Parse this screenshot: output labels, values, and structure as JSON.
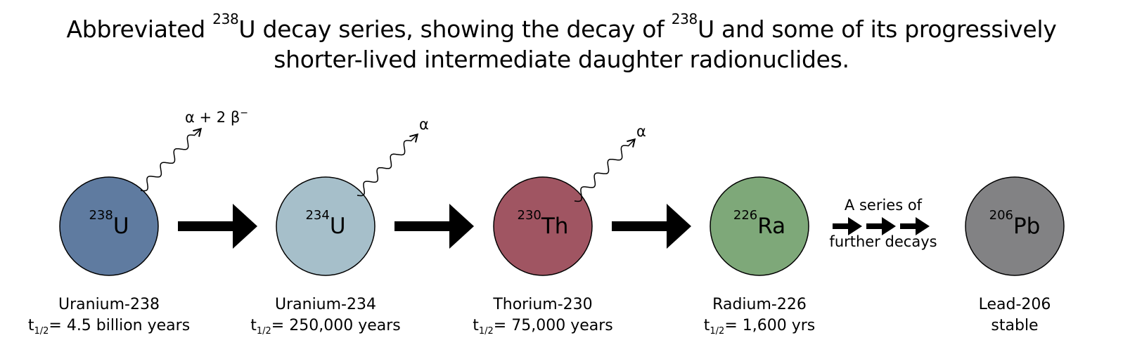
{
  "title": {
    "line1_pre": "Abbreviated ",
    "sup1": "238",
    "line1_mid": "U decay series, showing the decay of ",
    "sup2": "238",
    "line1_post": "U and some of its progressively",
    "line2": "shorter-lived intermediate daughter radionuclides."
  },
  "nuclides": [
    {
      "mass": "238",
      "symbol": "U",
      "name": "Uranium-238",
      "half_life_prefix": "t",
      "half_life_sub": "1/2",
      "half_life_value": "= 4.5 billion years",
      "color": "#5f7ba0"
    },
    {
      "mass": "234",
      "symbol": "U",
      "name": "Uranium-234",
      "half_life_prefix": "t",
      "half_life_sub": "1/2",
      "half_life_value": "= 250,000 years",
      "color": "#a6bfca"
    },
    {
      "mass": "230",
      "symbol": "Th",
      "name": "Thorium-230",
      "half_life_prefix": "t",
      "half_life_sub": "1/2",
      "half_life_value": "= 75,000 years",
      "color": "#a05562"
    },
    {
      "mass": "226",
      "symbol": "Ra",
      "name": "Radium-226",
      "half_life_prefix": "t",
      "half_life_sub": "1/2",
      "half_life_value": "= 1,600 yrs",
      "color": "#7ea879"
    },
    {
      "mass": "206",
      "symbol": "Pb",
      "name": "Lead-206",
      "stability": "stable",
      "color": "#828284"
    }
  ],
  "decays": [
    {
      "main": "α + 2 β",
      "sup": "−"
    },
    {
      "main": "α"
    },
    {
      "main": "α"
    }
  ],
  "series_note": {
    "line1": "A series of",
    "line2": "further decays"
  }
}
